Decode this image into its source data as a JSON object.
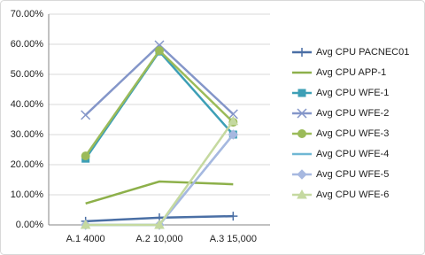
{
  "chart_data": {
    "type": "line",
    "categories": [
      "A.1 4000",
      "A.2 10,000",
      "A.3 15,000"
    ],
    "ylim": [
      0,
      70
    ],
    "yticks": [
      {
        "value": 0,
        "label": "0.00%"
      },
      {
        "value": 10,
        "label": "10.00%"
      },
      {
        "value": 20,
        "label": "20.00%"
      },
      {
        "value": 30,
        "label": "30.00%"
      },
      {
        "value": 40,
        "label": "40.00%"
      },
      {
        "value": 50,
        "label": "50.00%"
      },
      {
        "value": 60,
        "label": "60.00%"
      },
      {
        "value": 70,
        "label": "70.00%"
      }
    ],
    "grid": true,
    "legend": "right",
    "series": [
      {
        "name": "Avg CPU PACNEC01",
        "color": "#4a6fa5",
        "marker": "plus",
        "values": [
          1.2,
          2.4,
          2.9
        ]
      },
      {
        "name": "Avg CPU APP-1",
        "color": "#8db04a",
        "marker": "none",
        "values": [
          7.1,
          14.4,
          13.5
        ]
      },
      {
        "name": "Avg CPU WFE-1",
        "color": "#3d9fb6",
        "marker": "square",
        "values": [
          22,
          57.6,
          30
        ]
      },
      {
        "name": "Avg CPU WFE-2",
        "color": "#8496c9",
        "marker": "x",
        "values": [
          36.5,
          59.7,
          36.8
        ]
      },
      {
        "name": "Avg CPU WFE-3",
        "color": "#9bbb59",
        "marker": "circle",
        "values": [
          22.9,
          57.9,
          34.1
        ]
      },
      {
        "name": "Avg CPU WFE-4",
        "color": "#6fb7d4",
        "marker": "none",
        "values": [
          0,
          0,
          30
        ]
      },
      {
        "name": "Avg CPU WFE-5",
        "color": "#a7b8e0",
        "marker": "diamond",
        "values": [
          0,
          0,
          30
        ]
      },
      {
        "name": "Avg CPU WFE-6",
        "color": "#c5d9a0",
        "marker": "triangle",
        "values": [
          0,
          0,
          34.5
        ]
      }
    ]
  }
}
